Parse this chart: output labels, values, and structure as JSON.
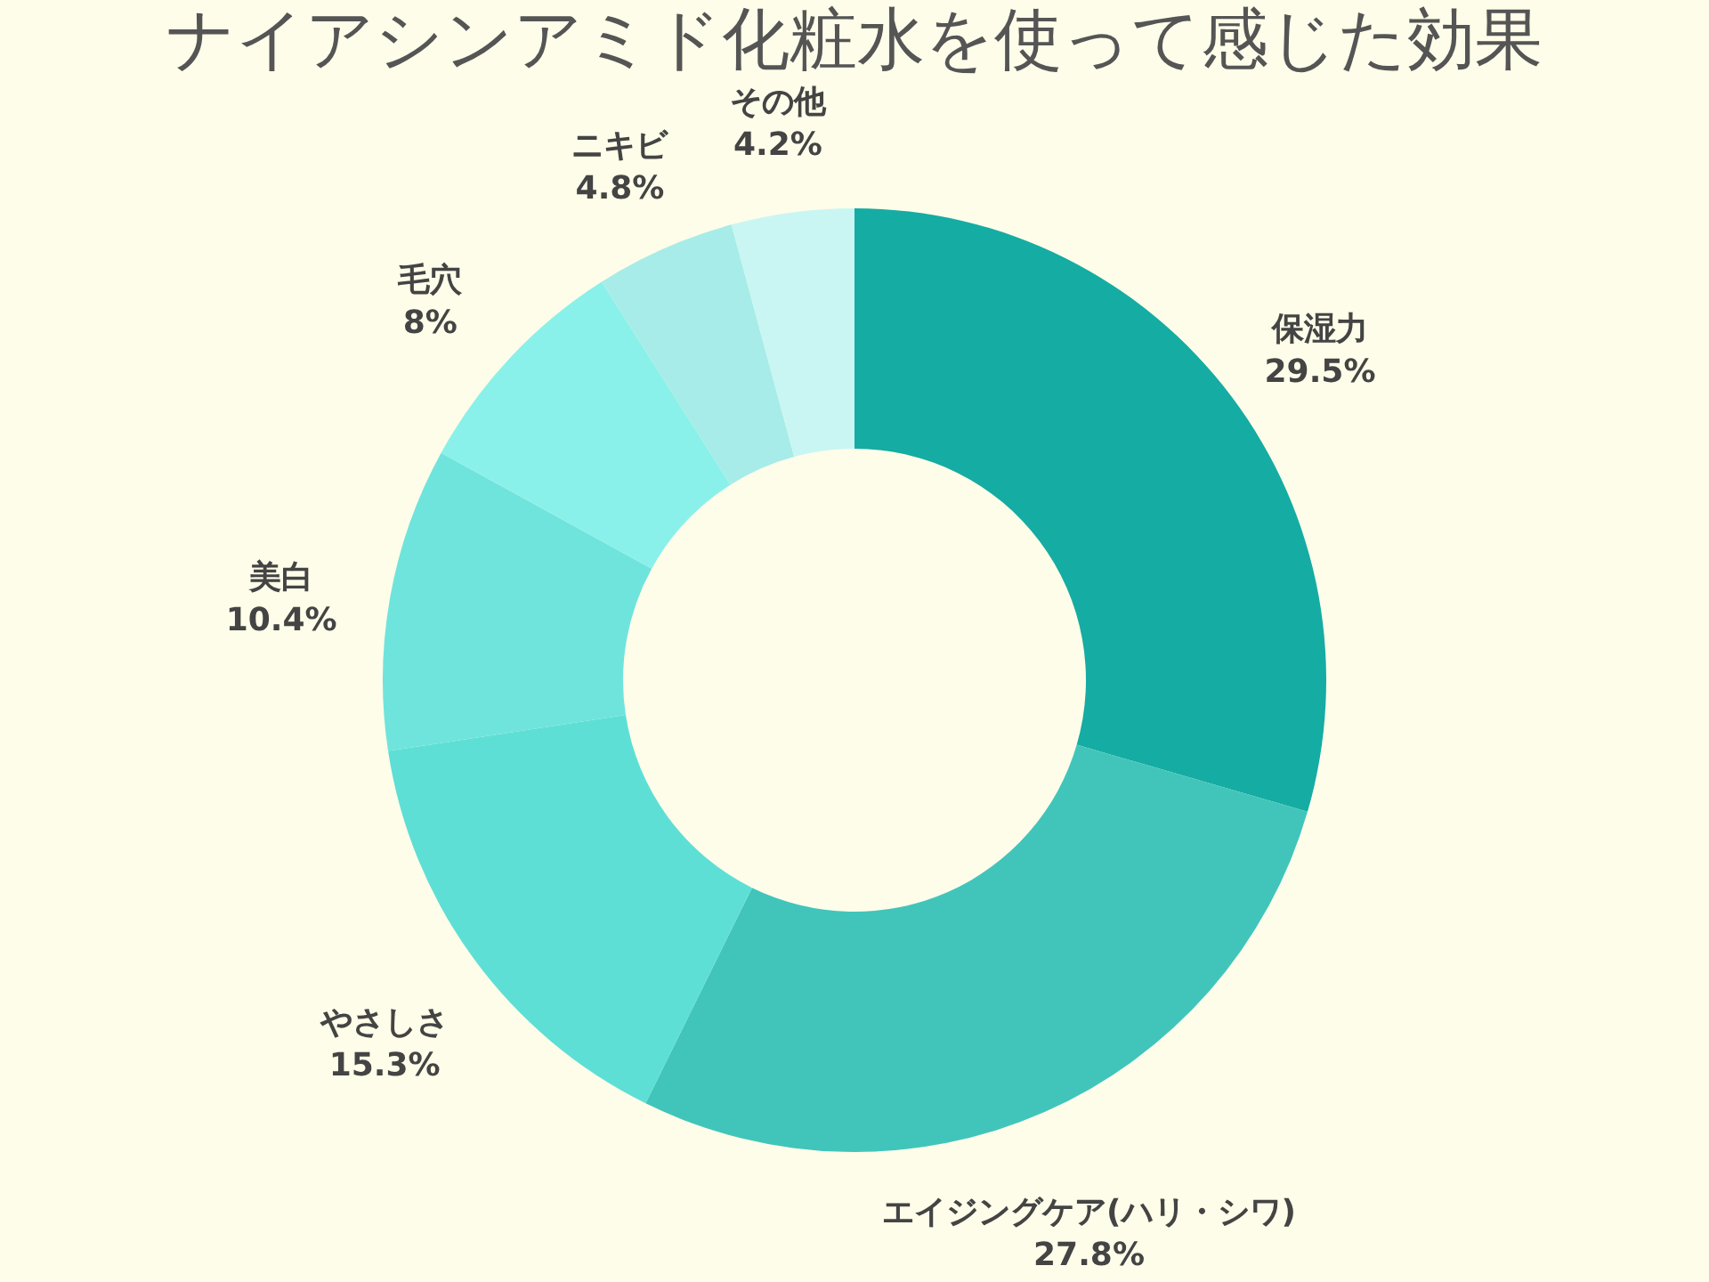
{
  "chart_data": {
    "type": "donut",
    "title": "ナイアシンアミド化粧水を使って感じた効果",
    "categories": [
      "保湿力",
      "エイジングケア(ハリ・シワ)",
      "やさしさ",
      "美白",
      "毛穴",
      "ニキビ",
      "その他"
    ],
    "values": [
      29.5,
      27.8,
      15.3,
      10.4,
      8,
      4.8,
      4.2
    ],
    "value_labels": [
      "29.5%",
      "27.8%",
      "15.3%",
      "10.4%",
      "8%",
      "4.8%",
      "4.2%"
    ],
    "colors": [
      "#15aca3",
      "#41c5bb",
      "#5ddfd6",
      "#6fe4dc",
      "#8af1ea",
      "#a7ece8",
      "#c9f6f3"
    ]
  }
}
